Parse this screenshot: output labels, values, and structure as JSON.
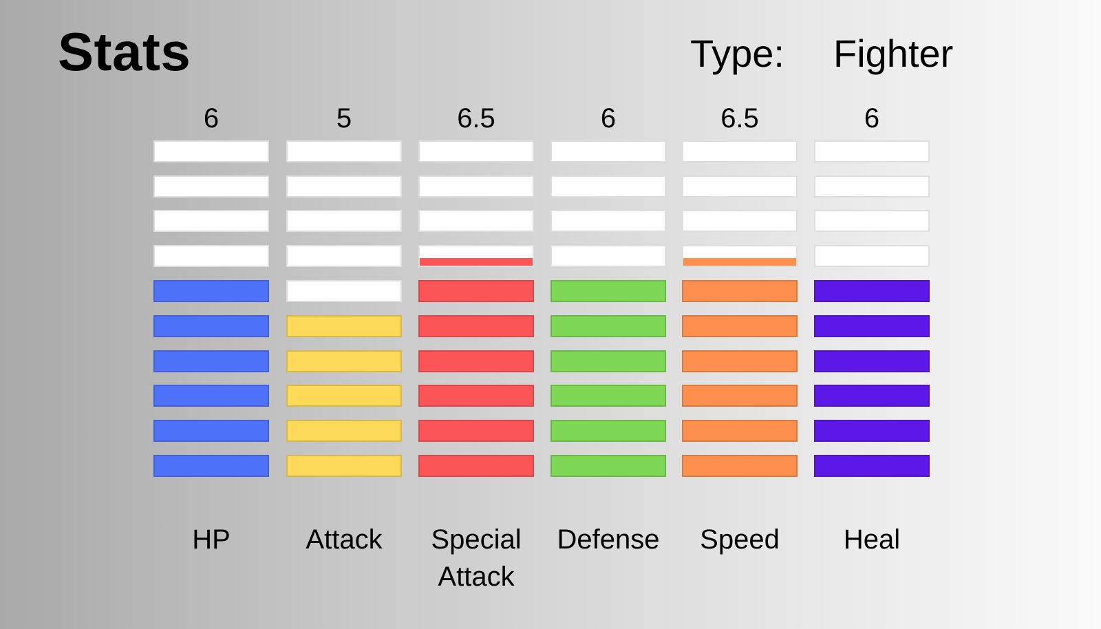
{
  "header": {
    "title": "Stats",
    "type_label": "Type:",
    "type_value": "Fighter"
  },
  "chart_data": {
    "type": "bar",
    "title": "Stats",
    "ylim": [
      0,
      10
    ],
    "segments_per_bar": 10,
    "categories": [
      "HP",
      "Attack",
      "Special\nAttack",
      "Defense",
      "Speed",
      "Heal"
    ],
    "values": [
      6,
      5,
      6.5,
      6,
      6.5,
      6
    ],
    "value_labels": [
      "6",
      "5",
      "6.5",
      "6",
      "6.5",
      "6"
    ],
    "colors": [
      "#4f72fa",
      "#fdd95a",
      "#fc5558",
      "#7fd756",
      "#fd904e",
      "#5c18e6"
    ],
    "empty_color": "#ffffff",
    "grid": false
  }
}
